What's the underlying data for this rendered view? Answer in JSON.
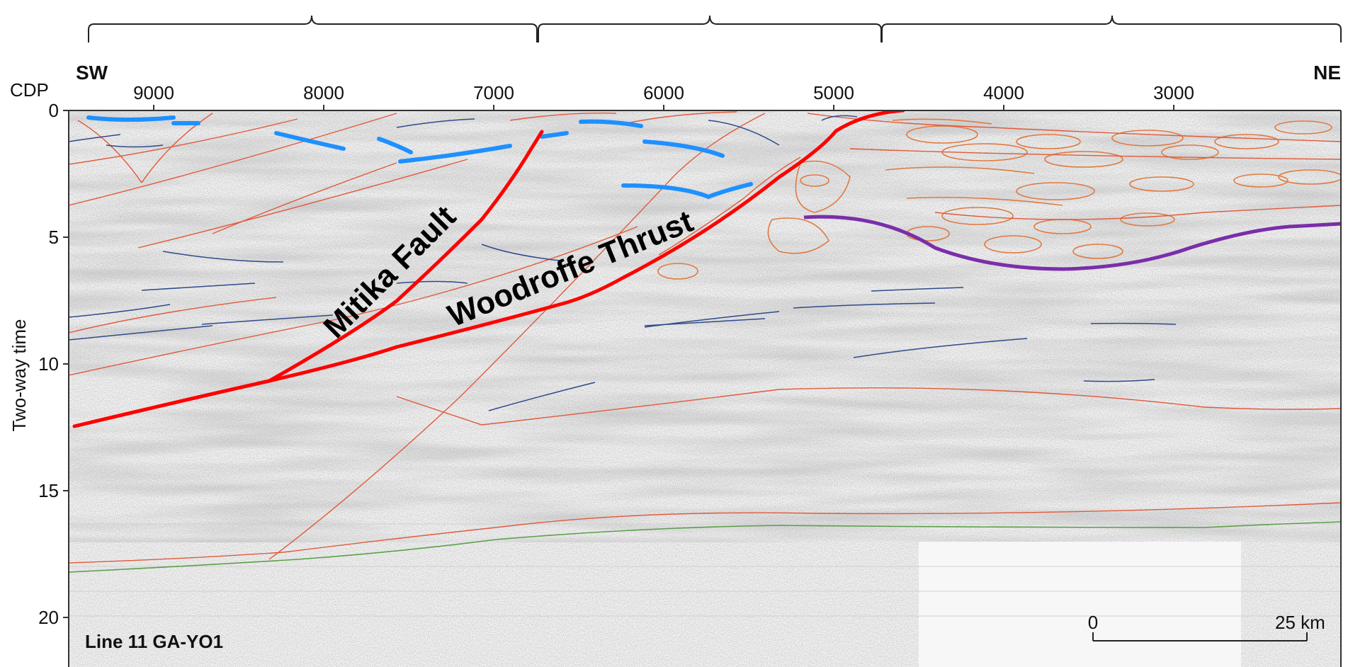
{
  "section": {
    "direction_left": "SW",
    "direction_right": "NE",
    "x_axis_label": "CDP",
    "y_axis_label": "Two-way time",
    "line_label": "Line 11 GA-YO1"
  },
  "chart_data": {
    "type": "seismic-section",
    "x_axis": {
      "label": "CDP",
      "reversed": true,
      "range": [
        9500,
        2000
      ],
      "ticks": [
        9000,
        8000,
        7000,
        6000,
        5000,
        4000,
        3000
      ],
      "tick_labels": [
        "9000",
        "8000",
        "7000",
        "6000",
        "5000",
        "4000",
        "3000"
      ]
    },
    "y_axis": {
      "label": "Two-way time",
      "range": [
        0,
        22
      ],
      "reversed": true,
      "ticks": [
        0,
        5,
        10,
        15,
        20
      ],
      "tick_labels": [
        "0",
        "5",
        "10",
        "15",
        "20"
      ]
    },
    "annotations": {
      "mitika_fault": "Mitika Fault",
      "woodroffe_thrust": "Woodroffe Thrust",
      "scale_start": "0",
      "scale_end": "25 km"
    },
    "colors": {
      "major_fault": "#ff0000",
      "minor_fault": "#e05a3a",
      "reflector_thick": "#1e90ff",
      "reflector_thin": "#2e4a8a",
      "purple_horizon": "#7a2ea8",
      "green_horizon": "#5aa04a",
      "orange_bodies": "#e07a40"
    }
  }
}
